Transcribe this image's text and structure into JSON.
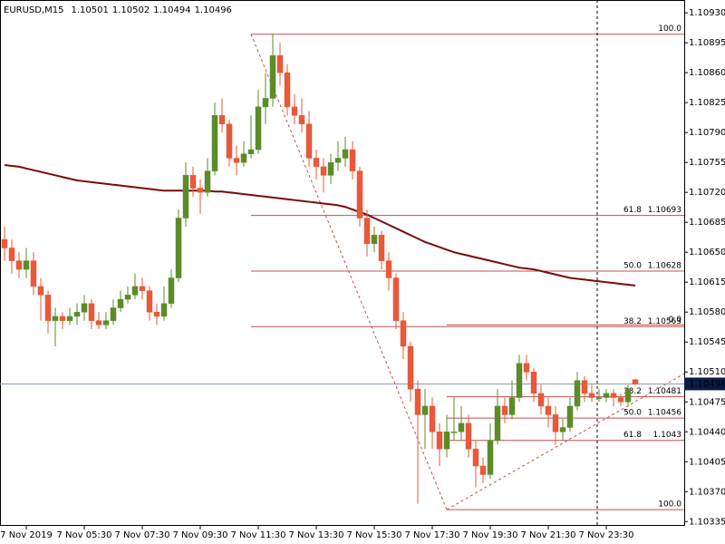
{
  "chart_data": {
    "type": "candlestick",
    "symbol": "EURUSD,M15",
    "bull_color": "#5b8c2a",
    "bear_color": "#e8583a",
    "open": [
      1.10665,
      1.10655,
      1.1064,
      1.1063,
      1.1064,
      1.1061,
      1.106,
      1.1057,
      1.10575,
      1.1057,
      1.10575,
      1.1058,
      1.1059,
      1.1057,
      1.10565,
      1.1057,
      1.10585,
      1.10595,
      1.106,
      1.1061,
      1.10605,
      1.1058,
      1.10575,
      1.1059,
      1.1062,
      1.1069,
      1.1074,
      1.10725,
      1.1072,
      1.10745,
      1.1081,
      1.108,
      1.1076,
      1.10755,
      1.10765,
      1.1077,
      1.1082,
      1.1083,
      1.1088,
      1.1086,
      1.1082,
      1.1081,
      1.108,
      1.1076,
      1.1075,
      1.1074,
      1.10755,
      1.1076,
      1.1077,
      1.10745,
      1.1069,
      1.1066,
      1.1067,
      1.1064,
      1.1062,
      1.1057,
      1.1054,
      1.1049,
      1.1046,
      1.1047,
      1.1044,
      1.1042,
      1.1044,
      1.1044,
      1.1045,
      1.1042,
      1.104,
      1.1039,
      1.1043,
      1.1047,
      1.1046,
      1.1048,
      1.1052,
      1.1051,
      1.10485,
      1.1047,
      1.1046,
      1.1044,
      1.10445,
      1.1047,
      1.105,
      1.10485,
      1.1048,
      1.1048,
      1.10485,
      1.1048,
      1.10475,
      1.10501
    ],
    "high": [
      1.1068,
      1.10665,
      1.1065,
      1.10655,
      1.1065,
      1.1062,
      1.10605,
      1.10585,
      1.1058,
      1.10585,
      1.1059,
      1.106,
      1.10595,
      1.1058,
      1.1058,
      1.10595,
      1.10605,
      1.1061,
      1.10625,
      1.1062,
      1.1061,
      1.1059,
      1.1061,
      1.1063,
      1.107,
      1.10755,
      1.1075,
      1.10735,
      1.1076,
      1.10825,
      1.1083,
      1.10805,
      1.10775,
      1.1078,
      1.1081,
      1.1084,
      1.1086,
      1.10905,
      1.10895,
      1.1087,
      1.10835,
      1.1083,
      1.10815,
      1.1077,
      1.1076,
      1.10765,
      1.1078,
      1.10785,
      1.1078,
      1.1075,
      1.107,
      1.1068,
      1.10675,
      1.1065,
      1.10625,
      1.1058,
      1.10545,
      1.105,
      1.1049,
      1.1048,
      1.1045,
      1.1046,
      1.1048,
      1.1047,
      1.1046,
      1.1043,
      1.1041,
      1.1045,
      1.1049,
      1.1048,
      1.105,
      1.1053,
      1.1053,
      1.10515,
      1.10495,
      1.1048,
      1.1047,
      1.10455,
      1.1048,
      1.1051,
      1.10505,
      1.10495,
      1.1049,
      1.1049,
      1.1049,
      1.10485,
      1.10495,
      1.10502
    ],
    "low": [
      1.1064,
      1.10625,
      1.1062,
      1.1062,
      1.106,
      1.1057,
      1.10555,
      1.1054,
      1.1056,
      1.10565,
      1.10565,
      1.1057,
      1.1056,
      1.1056,
      1.1056,
      1.10565,
      1.1058,
      1.1059,
      1.10595,
      1.10595,
      1.1057,
      1.10565,
      1.1057,
      1.10585,
      1.10615,
      1.1068,
      1.10715,
      1.10695,
      1.10715,
      1.1074,
      1.1079,
      1.1075,
      1.1074,
      1.1075,
      1.1076,
      1.10765,
      1.108,
      1.1082,
      1.10845,
      1.1081,
      1.108,
      1.1079,
      1.1075,
      1.10735,
      1.1072,
      1.1073,
      1.10745,
      1.1075,
      1.10735,
      1.1068,
      1.10645,
      1.1065,
      1.1063,
      1.10605,
      1.1056,
      1.10525,
      1.10475,
      1.10356,
      1.1042,
      1.1042,
      1.104,
      1.1041,
      1.1043,
      1.1043,
      1.1041,
      1.10375,
      1.1038,
      1.10385,
      1.10425,
      1.1045,
      1.10455,
      1.10475,
      1.105,
      1.10475,
      1.1046,
      1.10445,
      1.10425,
      1.1043,
      1.1044,
      1.10465,
      1.10475,
      1.10475,
      1.10475,
      1.10475,
      1.1047,
      1.1047,
      1.1047,
      1.10494
    ],
    "close": [
      1.10655,
      1.1064,
      1.1063,
      1.1064,
      1.1061,
      1.106,
      1.1057,
      1.10575,
      1.1057,
      1.10575,
      1.1058,
      1.1059,
      1.1057,
      1.10565,
      1.1057,
      1.10585,
      1.10595,
      1.106,
      1.1061,
      1.10605,
      1.1058,
      1.10575,
      1.1059,
      1.1062,
      1.1069,
      1.1074,
      1.10725,
      1.1072,
      1.10745,
      1.1081,
      1.108,
      1.1076,
      1.10755,
      1.10765,
      1.1077,
      1.1082,
      1.1083,
      1.1088,
      1.1086,
      1.1082,
      1.1081,
      1.108,
      1.1076,
      1.1075,
      1.1074,
      1.10755,
      1.1076,
      1.1077,
      1.10745,
      1.1069,
      1.1066,
      1.1067,
      1.1064,
      1.1062,
      1.1057,
      1.1054,
      1.1049,
      1.1046,
      1.1047,
      1.1044,
      1.1042,
      1.1044,
      1.1044,
      1.1045,
      1.1042,
      1.104,
      1.1039,
      1.1043,
      1.1047,
      1.1046,
      1.1048,
      1.1052,
      1.1051,
      1.10485,
      1.1047,
      1.1046,
      1.1044,
      1.10445,
      1.1047,
      1.105,
      1.10485,
      1.1048,
      1.1048,
      1.10485,
      1.1048,
      1.10475,
      1.1049,
      1.10496
    ],
    "ma": {
      "color": "#7a0a0a",
      "values": [
        1.10752,
        1.10751,
        1.1075,
        1.10748,
        1.10746,
        1.10744,
        1.10742,
        1.1074,
        1.10738,
        1.10736,
        1.10734,
        1.10733,
        1.10732,
        1.10731,
        1.1073,
        1.10729,
        1.10728,
        1.10727,
        1.10726,
        1.10725,
        1.10724,
        1.10723,
        1.10722,
        1.10722,
        1.10722,
        1.10722,
        1.10722,
        1.10722,
        1.10722,
        1.10721,
        1.10721,
        1.1072,
        1.10719,
        1.10718,
        1.10717,
        1.10716,
        1.10715,
        1.10714,
        1.10713,
        1.10712,
        1.10711,
        1.1071,
        1.10709,
        1.10708,
        1.10707,
        1.10706,
        1.10705,
        1.10703,
        1.107,
        1.10697,
        1.10694,
        1.1069,
        1.10686,
        1.10682,
        1.10678,
        1.10674,
        1.1067,
        1.10666,
        1.10662,
        1.10659,
        1.10656,
        1.10653,
        1.1065,
        1.10648,
        1.10646,
        1.10644,
        1.10642,
        1.1064,
        1.10638,
        1.10636,
        1.10634,
        1.10632,
        1.10631,
        1.1063,
        1.10628,
        1.10626,
        1.10624,
        1.10622,
        1.1062,
        1.10619,
        1.10618,
        1.10617,
        1.10616,
        1.10615,
        1.10614,
        1.10613,
        1.10612,
        1.10611
      ]
    },
    "fib_color": "#c0504d",
    "fibs": [
      {
        "from": 34,
        "levels": [
          {
            "level": {
              "value": 100,
              "label": "100.0"
            },
            "price": 1.10905
          },
          {
            "level": {
              "value": 61.8,
              "label": "61.8"
            },
            "price": 1.10693
          },
          {
            "level": {
              "value": 50,
              "label": "50.0"
            },
            "price": 1.10628
          },
          {
            "level": {
              "value": 38.2,
              "label": "38.2"
            },
            "price": 1.10563
          }
        ]
      },
      {
        "from": 61,
        "levels": [
          {
            "level": {
              "value": 0,
              "label": "0.0"
            },
            "price": 1.10565
          },
          {
            "level": {
              "value": 38.2,
              "label": "38.2"
            },
            "price": 1.10481
          },
          {
            "level": {
              "value": 50,
              "label": "50.0"
            },
            "price": 1.10456
          },
          {
            "level": {
              "value": 61.8,
              "label": "61.8"
            },
            "price": 1.1043
          },
          {
            "level": {
              "value": 100,
              "label": "100.0"
            },
            "price": 1.10349
          }
        ]
      }
    ],
    "trendlines": [
      {
        "points": [
          [
            34,
            1.10905
          ],
          [
            61,
            1.10349
          ]
        ]
      },
      {
        "points": [
          [
            61,
            1.10349
          ],
          [
            93.75,
            1.10508
          ]
        ]
      }
    ],
    "vline": 81.75,
    "xlim": [
      -0.625,
      93.75
    ],
    "xticks": [
      {
        "value": 3,
        "label": "7 Nov 2019"
      },
      {
        "value": 11,
        "label": "7 Nov 05:30"
      },
      {
        "value": 19,
        "label": "7 Nov 07:30"
      },
      {
        "value": 27,
        "label": "7 Nov 09:30"
      },
      {
        "value": 35,
        "label": "7 Nov 11:30"
      },
      {
        "value": 43,
        "label": "7 Nov 13:30"
      },
      {
        "value": 51,
        "label": "7 Nov 15:30"
      },
      {
        "value": 59,
        "label": "7 Nov 17:30"
      },
      {
        "value": 67,
        "label": "7 Nov 19:30"
      },
      {
        "value": 75,
        "label": "7 Nov 21:30"
      },
      {
        "value": 83,
        "label": "7 Nov 23:30"
      }
    ],
    "ylim": [
      1.1033,
      1.10945
    ],
    "yticks": [
      {
        "value": 1.1093,
        "label": "1.10930"
      },
      {
        "value": 1.10895,
        "label": "1.10895"
      },
      {
        "value": 1.1086,
        "label": "1.10860"
      },
      {
        "value": 1.10825,
        "label": "1.10825"
      },
      {
        "value": 1.1079,
        "label": "1.10790"
      },
      {
        "value": 1.10755,
        "label": "1.10755"
      },
      {
        "value": 1.1072,
        "label": "1.10720"
      },
      {
        "value": 1.10685,
        "label": "1.10685"
      },
      {
        "value": 1.1065,
        "label": "1.10650"
      },
      {
        "value": 1.10615,
        "label": "1.10615"
      },
      {
        "value": 1.1058,
        "label": "1.10580"
      },
      {
        "value": 1.10545,
        "label": "1.10545"
      },
      {
        "value": 1.1051,
        "label": "1.10510"
      },
      {
        "value": 1.10475,
        "label": "1.10475"
      },
      {
        "value": 1.1044,
        "label": "1.10440"
      },
      {
        "value": 1.10405,
        "label": "1.10405"
      },
      {
        "value": 1.1037,
        "label": "1.10370"
      },
      {
        "value": 1.10335,
        "label": "1.10335"
      }
    ]
  }
}
